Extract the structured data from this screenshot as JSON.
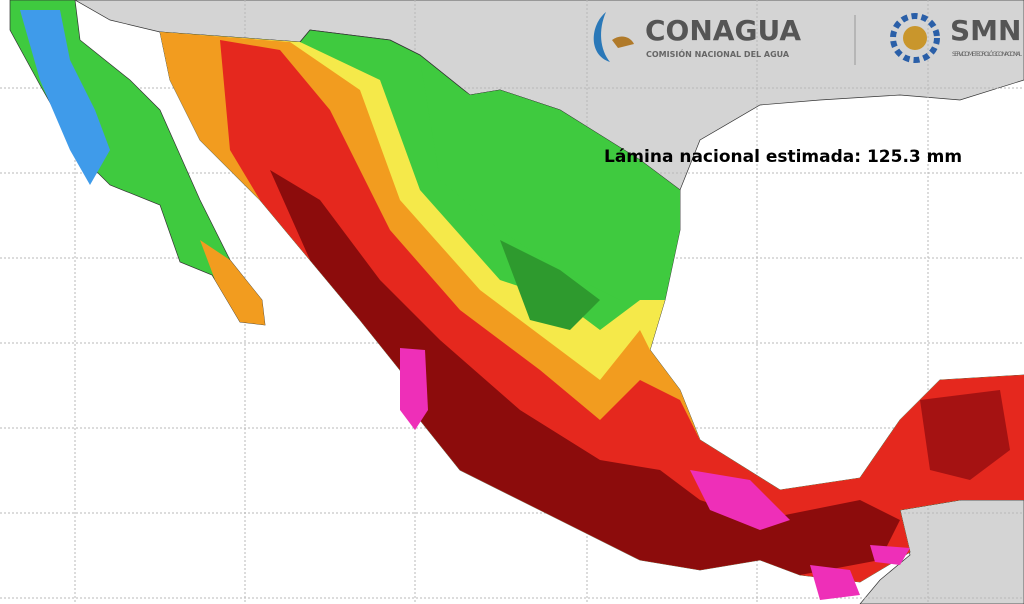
{
  "logos": {
    "conagua": {
      "name": "CONAGUA",
      "subtitle": "COMISIÓN NACIONAL DEL AGUA"
    },
    "smn": {
      "name": "SMN",
      "subtitle": "SERVICIO METEOROLÓGICO NACIONAL"
    }
  },
  "annotation": "Lámina nacional estimada: 125.3 mm"
}
